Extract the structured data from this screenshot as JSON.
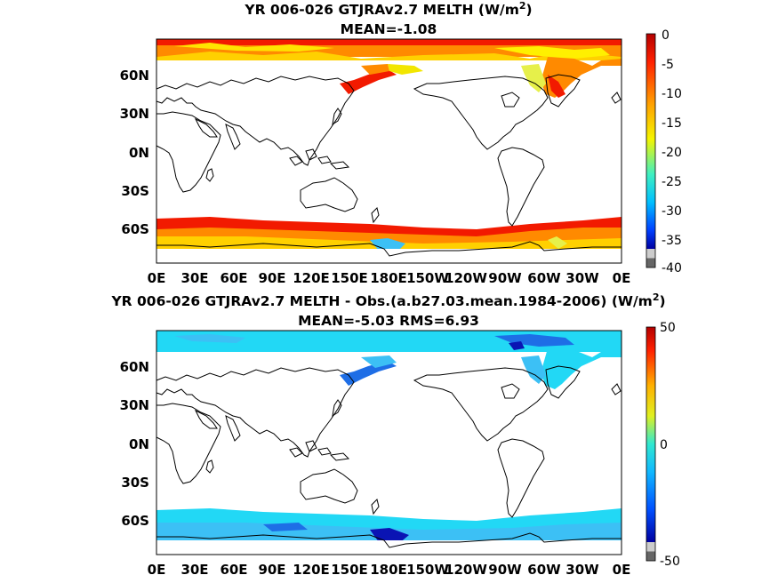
{
  "panels": [
    {
      "title_line1": "YR 006-026 GTJRAv2.7  MELTH (W/m",
      "title_line1_sup": "2",
      "title_line1_end": ")",
      "title_line2": "MEAN=-1.08",
      "colorbar_ticks": [
        "0",
        "-5",
        "-10",
        "-15",
        "-20",
        "-25",
        "-30",
        "-35",
        "-40"
      ],
      "colormap": "reversed jet (red at 0 to dark blue at -40)"
    },
    {
      "title_line1": "YR 006-026 GTJRAv2.7 MELTH - Obs.(a.b27.03.mean.1984-2006) (W/m",
      "title_line1_sup": "2",
      "title_line1_end": ")",
      "title_line2": "MEAN=-5.03 RMS=6.93",
      "colorbar_ticks": [
        "50",
        "0",
        "-50"
      ],
      "colormap": "jet (dark blue at -50 to red at 50)"
    }
  ],
  "map_axes": {
    "lat_ticks": [
      "60N",
      "30N",
      "0N",
      "30S",
      "60S"
    ],
    "lon_ticks": [
      "0E",
      "30E",
      "60E",
      "90E",
      "120E",
      "150E",
      "180E",
      "150W",
      "120W",
      "90W",
      "60W",
      "30W",
      "0E"
    ]
  },
  "colors": {
    "red": "#f21a00",
    "orange": "#ff8a00",
    "yellow": "#f2e600",
    "light_yellow": "#e6f04a",
    "cyan": "#22d8f5",
    "light_blue": "#3cc0f5",
    "blue": "#1e6ee6",
    "dark_blue": "#0a14b4",
    "land": "#ffffff"
  }
}
